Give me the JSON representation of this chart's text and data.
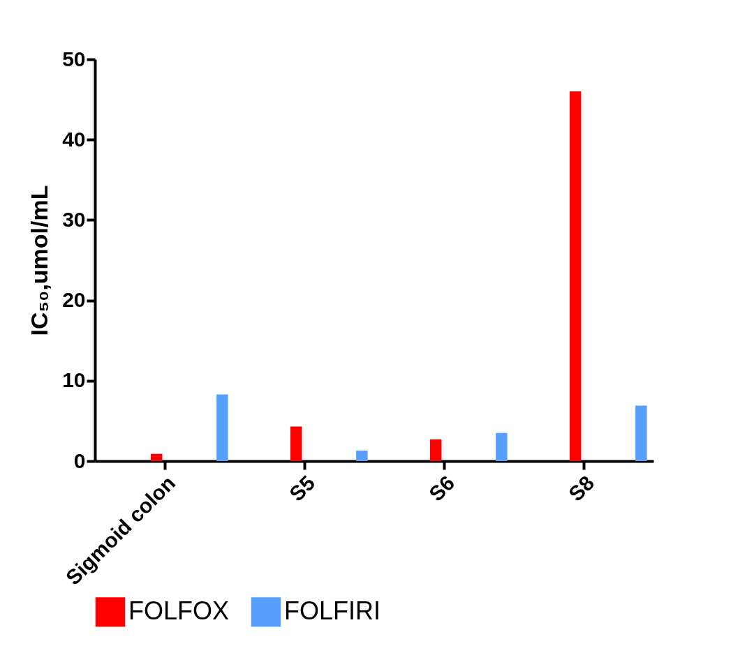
{
  "chart_data": {
    "type": "bar",
    "ylabel": "IC₅₀,umol/mL",
    "categories": [
      "Sigmoid colon",
      "S5",
      "S6",
      "S8"
    ],
    "series": [
      {
        "name": "FOLFOX",
        "color": "#ff0000",
        "values": [
          0.9,
          4.3,
          2.7,
          46.0
        ]
      },
      {
        "name": "FOLFIRI",
        "color": "#56a0fb",
        "values": [
          8.3,
          1.3,
          3.5,
          6.9
        ]
      }
    ],
    "ylim": [
      0,
      50
    ],
    "yticks": [
      0,
      10,
      20,
      30,
      40,
      50
    ],
    "grid": false,
    "legend": "bottom"
  }
}
